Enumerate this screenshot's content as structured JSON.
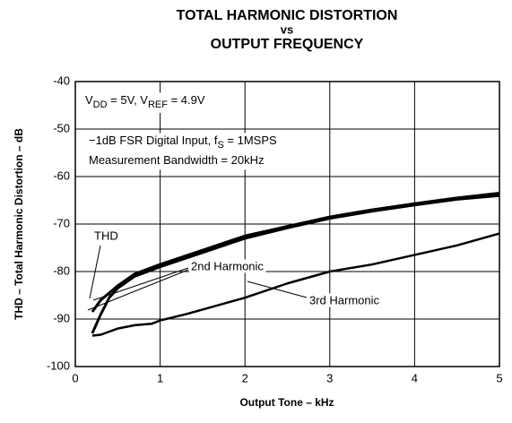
{
  "chart_data": {
    "type": "line",
    "title": [
      "TOTAL HARMONIC DISTORTION",
      "vs",
      "OUTPUT FREQUENCY"
    ],
    "xlabel": "Output Tone – kHz",
    "ylabel": "THD – Total Harmonic Distortion – dB",
    "xlim": [
      0,
      5
    ],
    "xticks": [
      0,
      1,
      2,
      3,
      4,
      5
    ],
    "ylim": [
      -100,
      -40
    ],
    "yticks": [
      -100,
      -90,
      -80,
      -70,
      -60,
      -50,
      -40
    ],
    "grid": true,
    "annotations": [
      {
        "parts": [
          {
            "text": "V"
          },
          {
            "text": "DD",
            "sub": true
          },
          {
            "text": " = 5V, V"
          },
          {
            "text": "REF",
            "sub": true
          },
          {
            "text": " = 4.9V"
          }
        ]
      },
      {
        "parts": [
          {
            "text": "−1dB FSR Digital Input, f"
          },
          {
            "text": "S",
            "sub": true
          },
          {
            "text": " = 1MSPS"
          }
        ]
      },
      {
        "parts": [
          {
            "text": "Measurement Bandwidth = 20kHz"
          }
        ]
      }
    ],
    "series": [
      {
        "name": "THD",
        "color": "#000000",
        "x": [
          0.2,
          0.3,
          0.5,
          0.7,
          1,
          1.5,
          2,
          2.5,
          3,
          3.5,
          4,
          4.5,
          5
        ],
        "values": [
          -88.5,
          -86,
          -83,
          -80.5,
          -78.5,
          -75.5,
          -72.5,
          -70.5,
          -68.5,
          -67,
          -65.7,
          -64.5,
          -63.5
        ]
      },
      {
        "name": "2nd Harmonic",
        "color": "#000000",
        "x": [
          0.2,
          0.3,
          0.4,
          0.5,
          0.7,
          1,
          1.5,
          2,
          2.5,
          3,
          3.5,
          4,
          4.5,
          5
        ],
        "values": [
          -93,
          -89,
          -85.5,
          -83.5,
          -81,
          -79,
          -76,
          -73,
          -70.8,
          -68.8,
          -67.3,
          -66,
          -64.8,
          -64
        ]
      },
      {
        "name": "3rd Harmonic",
        "color": "#000000",
        "x": [
          0.2,
          0.3,
          0.5,
          0.7,
          0.9,
          1,
          1.3,
          1.5,
          2,
          2.5,
          3,
          3.5,
          4,
          4.5,
          5
        ],
        "values": [
          -93.5,
          -93.3,
          -92,
          -91.3,
          -91,
          -90.3,
          -89,
          -88,
          -85.5,
          -82.5,
          -80,
          -78.5,
          -76.5,
          -74.5,
          -72
        ]
      }
    ]
  }
}
